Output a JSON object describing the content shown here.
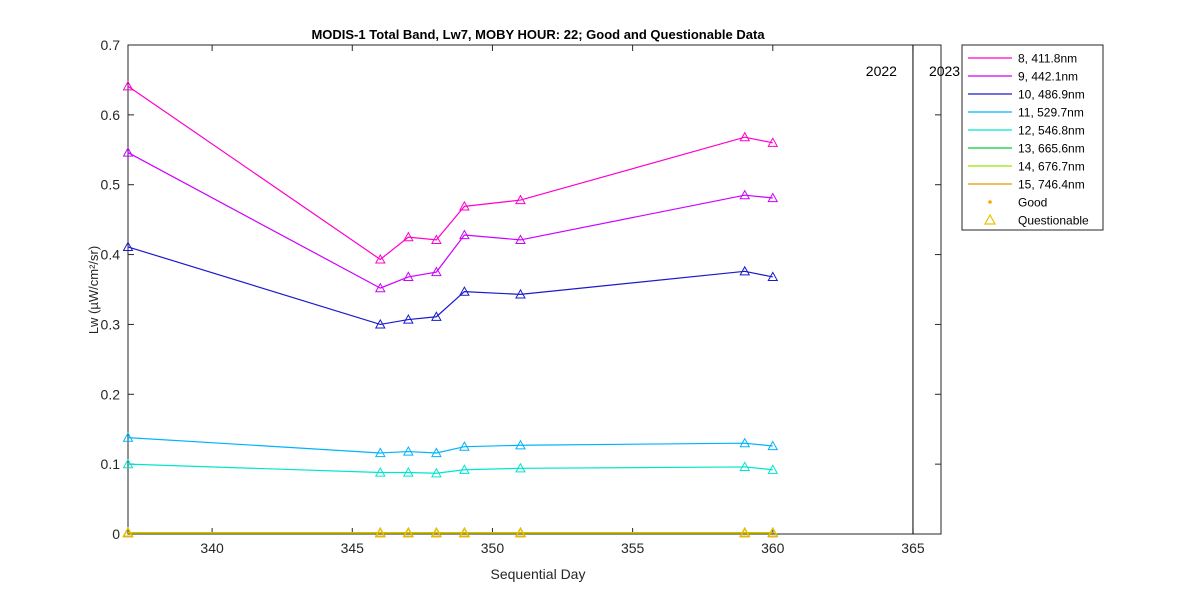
{
  "chart_data": {
    "type": "line",
    "title": "MODIS-1 Total Band,  Lw7, MOBY HOUR: 22;  Good and Questionable Data",
    "xlabel": "Sequential Day",
    "ylabel": "Lw (µW/cm²/sr)",
    "xlim": [
      337,
      366
    ],
    "ylim": [
      0,
      0.7
    ],
    "xticks": [
      340,
      345,
      350,
      355,
      360,
      365
    ],
    "yticks": [
      0,
      0.1,
      0.2,
      0.3,
      0.4,
      0.5,
      0.6,
      0.7
    ],
    "grid": false,
    "legend_position": "outside-right",
    "x": [
      337,
      346,
      347,
      348,
      349,
      351,
      359,
      360
    ],
    "series": [
      {
        "name": "8, 411.8nm",
        "color": "#ff00cc",
        "values": [
          0.641,
          0.393,
          0.425,
          0.421,
          0.469,
          0.478,
          0.568,
          0.56
        ]
      },
      {
        "name": "9, 442.1nm",
        "color": "#cc00ff",
        "values": [
          0.546,
          0.352,
          0.368,
          0.375,
          0.428,
          0.421,
          0.485,
          0.481
        ]
      },
      {
        "name": "10, 486.9nm",
        "color": "#1a1acc",
        "values": [
          0.411,
          0.3,
          0.307,
          0.311,
          0.347,
          0.343,
          0.376,
          0.368
        ]
      },
      {
        "name": "11, 529.7nm",
        "color": "#00b3ff",
        "values": [
          0.138,
          0.116,
          0.118,
          0.116,
          0.125,
          0.127,
          0.13,
          0.126
        ]
      },
      {
        "name": "12, 546.8nm",
        "color": "#00e6cc",
        "values": [
          0.1,
          0.088,
          0.088,
          0.087,
          0.092,
          0.094,
          0.096,
          0.092
        ]
      },
      {
        "name": "13, 665.6nm",
        "color": "#00cc33",
        "values": [
          0.002,
          0.002,
          0.002,
          0.002,
          0.002,
          0.002,
          0.002,
          0.002
        ]
      },
      {
        "name": "14, 676.7nm",
        "color": "#99e600",
        "values": [
          0.002,
          0.002,
          0.002,
          0.002,
          0.002,
          0.002,
          0.002,
          0.002
        ]
      },
      {
        "name": "15, 746.4nm",
        "color": "#e69900",
        "values": [
          0.001,
          0.001,
          0.001,
          0.001,
          0.001,
          0.001,
          0.001,
          0.001
        ]
      }
    ],
    "legend": {
      "good_label": "Good",
      "questionable_label": "Questionable",
      "good_color": "#ffa500",
      "questionable_color": "#e6c300"
    },
    "year_divider": {
      "x": 365,
      "left_label": "2022",
      "right_label": "2023",
      "color": "#000000"
    }
  }
}
